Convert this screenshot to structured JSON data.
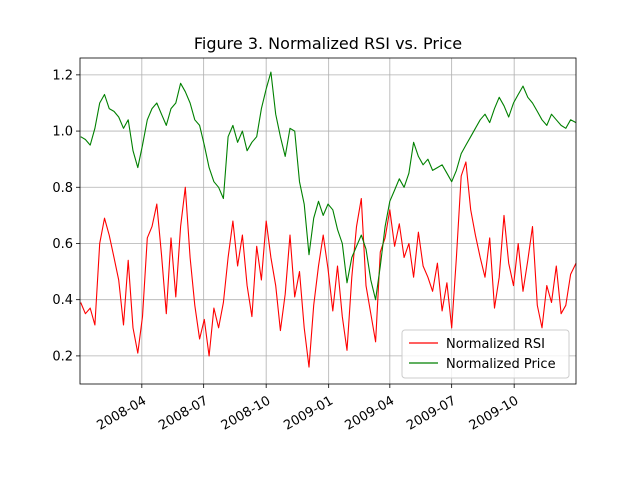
{
  "chart_data": {
    "type": "line",
    "title": "Figure 3. Normalized RSI vs. Price",
    "xlabel": "",
    "ylabel": "",
    "x_axis": {
      "type": "date",
      "range": [
        "2008-01-01",
        "2009-12-31"
      ],
      "ticks": [
        "2008-04",
        "2008-07",
        "2008-10",
        "2009-01",
        "2009-04",
        "2009-07",
        "2009-10"
      ]
    },
    "ylim": [
      0.1,
      1.26
    ],
    "y_ticks": [
      "0.2",
      "0.4",
      "0.6",
      "0.8",
      "1.0",
      "1.2"
    ],
    "grid": true,
    "legend": {
      "position": "lower-right",
      "entries": [
        "Normalized RSI",
        "Normalized Price"
      ]
    },
    "series": [
      {
        "name": "Normalized RSI",
        "color": "#ff0000",
        "points": [
          [
            "2008-01-02",
            0.39
          ],
          [
            "2008-01-09",
            0.35
          ],
          [
            "2008-01-16",
            0.37
          ],
          [
            "2008-01-23",
            0.31
          ],
          [
            "2008-01-30",
            0.6
          ],
          [
            "2008-02-06",
            0.69
          ],
          [
            "2008-02-13",
            0.63
          ],
          [
            "2008-02-20",
            0.55
          ],
          [
            "2008-02-27",
            0.47
          ],
          [
            "2008-03-05",
            0.31
          ],
          [
            "2008-03-12",
            0.54
          ],
          [
            "2008-03-19",
            0.3
          ],
          [
            "2008-03-26",
            0.21
          ],
          [
            "2008-04-02",
            0.34
          ],
          [
            "2008-04-09",
            0.62
          ],
          [
            "2008-04-16",
            0.66
          ],
          [
            "2008-04-23",
            0.74
          ],
          [
            "2008-04-30",
            0.56
          ],
          [
            "2008-05-07",
            0.35
          ],
          [
            "2008-05-14",
            0.62
          ],
          [
            "2008-05-21",
            0.41
          ],
          [
            "2008-05-28",
            0.66
          ],
          [
            "2008-06-04",
            0.8
          ],
          [
            "2008-06-11",
            0.55
          ],
          [
            "2008-06-18",
            0.38
          ],
          [
            "2008-06-25",
            0.26
          ],
          [
            "2008-07-02",
            0.33
          ],
          [
            "2008-07-09",
            0.2
          ],
          [
            "2008-07-16",
            0.37
          ],
          [
            "2008-07-23",
            0.3
          ],
          [
            "2008-07-30",
            0.39
          ],
          [
            "2008-08-06",
            0.55
          ],
          [
            "2008-08-13",
            0.68
          ],
          [
            "2008-08-20",
            0.52
          ],
          [
            "2008-08-27",
            0.63
          ],
          [
            "2008-09-03",
            0.45
          ],
          [
            "2008-09-10",
            0.34
          ],
          [
            "2008-09-17",
            0.59
          ],
          [
            "2008-09-24",
            0.47
          ],
          [
            "2008-10-01",
            0.68
          ],
          [
            "2008-10-08",
            0.55
          ],
          [
            "2008-10-15",
            0.45
          ],
          [
            "2008-10-22",
            0.29
          ],
          [
            "2008-10-29",
            0.42
          ],
          [
            "2008-11-05",
            0.63
          ],
          [
            "2008-11-12",
            0.41
          ],
          [
            "2008-11-19",
            0.5
          ],
          [
            "2008-11-26",
            0.3
          ],
          [
            "2008-12-03",
            0.16
          ],
          [
            "2008-12-10",
            0.38
          ],
          [
            "2008-12-17",
            0.52
          ],
          [
            "2008-12-24",
            0.63
          ],
          [
            "2008-12-31",
            0.51
          ],
          [
            "2009-01-07",
            0.36
          ],
          [
            "2009-01-14",
            0.52
          ],
          [
            "2009-01-21",
            0.34
          ],
          [
            "2009-01-28",
            0.22
          ],
          [
            "2009-02-04",
            0.48
          ],
          [
            "2009-02-11",
            0.66
          ],
          [
            "2009-02-18",
            0.76
          ],
          [
            "2009-02-25",
            0.45
          ],
          [
            "2009-03-04",
            0.35
          ],
          [
            "2009-03-11",
            0.25
          ],
          [
            "2009-03-18",
            0.57
          ],
          [
            "2009-03-25",
            0.62
          ],
          [
            "2009-04-01",
            0.72
          ],
          [
            "2009-04-08",
            0.59
          ],
          [
            "2009-04-15",
            0.67
          ],
          [
            "2009-04-22",
            0.55
          ],
          [
            "2009-04-29",
            0.6
          ],
          [
            "2009-05-06",
            0.48
          ],
          [
            "2009-05-13",
            0.64
          ],
          [
            "2009-05-20",
            0.52
          ],
          [
            "2009-05-27",
            0.48
          ],
          [
            "2009-06-03",
            0.43
          ],
          [
            "2009-06-10",
            0.53
          ],
          [
            "2009-06-17",
            0.36
          ],
          [
            "2009-06-24",
            0.46
          ],
          [
            "2009-07-01",
            0.3
          ],
          [
            "2009-07-08",
            0.55
          ],
          [
            "2009-07-15",
            0.84
          ],
          [
            "2009-07-22",
            0.89
          ],
          [
            "2009-07-29",
            0.72
          ],
          [
            "2009-08-05",
            0.63
          ],
          [
            "2009-08-12",
            0.55
          ],
          [
            "2009-08-19",
            0.48
          ],
          [
            "2009-08-26",
            0.62
          ],
          [
            "2009-09-02",
            0.37
          ],
          [
            "2009-09-09",
            0.48
          ],
          [
            "2009-09-16",
            0.7
          ],
          [
            "2009-09-23",
            0.53
          ],
          [
            "2009-09-30",
            0.45
          ],
          [
            "2009-10-07",
            0.6
          ],
          [
            "2009-10-14",
            0.43
          ],
          [
            "2009-10-21",
            0.54
          ],
          [
            "2009-10-28",
            0.66
          ],
          [
            "2009-11-04",
            0.38
          ],
          [
            "2009-11-11",
            0.3
          ],
          [
            "2009-11-18",
            0.45
          ],
          [
            "2009-11-25",
            0.39
          ],
          [
            "2009-12-02",
            0.52
          ],
          [
            "2009-12-09",
            0.35
          ],
          [
            "2009-12-16",
            0.38
          ],
          [
            "2009-12-23",
            0.49
          ],
          [
            "2009-12-31",
            0.53
          ]
        ]
      },
      {
        "name": "Normalized Price",
        "color": "#008000",
        "points": [
          [
            "2008-01-02",
            0.98
          ],
          [
            "2008-01-09",
            0.97
          ],
          [
            "2008-01-16",
            0.95
          ],
          [
            "2008-01-23",
            1.01
          ],
          [
            "2008-01-30",
            1.1
          ],
          [
            "2008-02-06",
            1.13
          ],
          [
            "2008-02-13",
            1.08
          ],
          [
            "2008-02-20",
            1.07
          ],
          [
            "2008-02-27",
            1.05
          ],
          [
            "2008-03-05",
            1.01
          ],
          [
            "2008-03-12",
            1.04
          ],
          [
            "2008-03-19",
            0.93
          ],
          [
            "2008-03-26",
            0.87
          ],
          [
            "2008-04-02",
            0.95
          ],
          [
            "2008-04-09",
            1.04
          ],
          [
            "2008-04-16",
            1.08
          ],
          [
            "2008-04-23",
            1.1
          ],
          [
            "2008-04-30",
            1.06
          ],
          [
            "2008-05-07",
            1.02
          ],
          [
            "2008-05-14",
            1.08
          ],
          [
            "2008-05-21",
            1.1
          ],
          [
            "2008-05-28",
            1.17
          ],
          [
            "2008-06-04",
            1.14
          ],
          [
            "2008-06-11",
            1.1
          ],
          [
            "2008-06-18",
            1.04
          ],
          [
            "2008-06-25",
            1.02
          ],
          [
            "2008-07-02",
            0.95
          ],
          [
            "2008-07-09",
            0.87
          ],
          [
            "2008-07-16",
            0.82
          ],
          [
            "2008-07-23",
            0.8
          ],
          [
            "2008-07-30",
            0.76
          ],
          [
            "2008-08-06",
            0.98
          ],
          [
            "2008-08-13",
            1.02
          ],
          [
            "2008-08-20",
            0.96
          ],
          [
            "2008-08-27",
            1.0
          ],
          [
            "2008-09-03",
            0.93
          ],
          [
            "2008-09-10",
            0.96
          ],
          [
            "2008-09-17",
            0.98
          ],
          [
            "2008-09-24",
            1.08
          ],
          [
            "2008-10-01",
            1.15
          ],
          [
            "2008-10-08",
            1.21
          ],
          [
            "2008-10-15",
            1.06
          ],
          [
            "2008-10-22",
            0.98
          ],
          [
            "2008-10-29",
            0.91
          ],
          [
            "2008-11-05",
            1.01
          ],
          [
            "2008-11-12",
            1.0
          ],
          [
            "2008-11-19",
            0.82
          ],
          [
            "2008-11-26",
            0.74
          ],
          [
            "2008-12-03",
            0.56
          ],
          [
            "2008-12-10",
            0.69
          ],
          [
            "2008-12-17",
            0.75
          ],
          [
            "2008-12-24",
            0.7
          ],
          [
            "2008-12-31",
            0.74
          ],
          [
            "2009-01-07",
            0.72
          ],
          [
            "2009-01-14",
            0.65
          ],
          [
            "2009-01-21",
            0.6
          ],
          [
            "2009-01-28",
            0.46
          ],
          [
            "2009-02-04",
            0.55
          ],
          [
            "2009-02-11",
            0.59
          ],
          [
            "2009-02-18",
            0.63
          ],
          [
            "2009-02-25",
            0.58
          ],
          [
            "2009-03-04",
            0.47
          ],
          [
            "2009-03-11",
            0.4
          ],
          [
            "2009-03-18",
            0.52
          ],
          [
            "2009-03-25",
            0.66
          ],
          [
            "2009-04-01",
            0.75
          ],
          [
            "2009-04-08",
            0.79
          ],
          [
            "2009-04-15",
            0.83
          ],
          [
            "2009-04-22",
            0.8
          ],
          [
            "2009-04-29",
            0.85
          ],
          [
            "2009-05-06",
            0.96
          ],
          [
            "2009-05-13",
            0.91
          ],
          [
            "2009-05-20",
            0.88
          ],
          [
            "2009-05-27",
            0.9
          ],
          [
            "2009-06-03",
            0.86
          ],
          [
            "2009-06-10",
            0.87
          ],
          [
            "2009-06-17",
            0.88
          ],
          [
            "2009-06-24",
            0.85
          ],
          [
            "2009-07-01",
            0.82
          ],
          [
            "2009-07-08",
            0.86
          ],
          [
            "2009-07-15",
            0.92
          ],
          [
            "2009-07-22",
            0.95
          ],
          [
            "2009-07-29",
            0.98
          ],
          [
            "2009-08-05",
            1.01
          ],
          [
            "2009-08-12",
            1.04
          ],
          [
            "2009-08-19",
            1.06
          ],
          [
            "2009-08-26",
            1.03
          ],
          [
            "2009-09-02",
            1.08
          ],
          [
            "2009-09-09",
            1.12
          ],
          [
            "2009-09-16",
            1.09
          ],
          [
            "2009-09-23",
            1.05
          ],
          [
            "2009-09-30",
            1.1
          ],
          [
            "2009-10-07",
            1.13
          ],
          [
            "2009-10-14",
            1.16
          ],
          [
            "2009-10-21",
            1.12
          ],
          [
            "2009-10-28",
            1.1
          ],
          [
            "2009-11-04",
            1.07
          ],
          [
            "2009-11-11",
            1.04
          ],
          [
            "2009-11-18",
            1.02
          ],
          [
            "2009-11-25",
            1.06
          ],
          [
            "2009-12-02",
            1.04
          ],
          [
            "2009-12-09",
            1.02
          ],
          [
            "2009-12-16",
            1.01
          ],
          [
            "2009-12-23",
            1.04
          ],
          [
            "2009-12-31",
            1.03
          ]
        ]
      }
    ]
  }
}
